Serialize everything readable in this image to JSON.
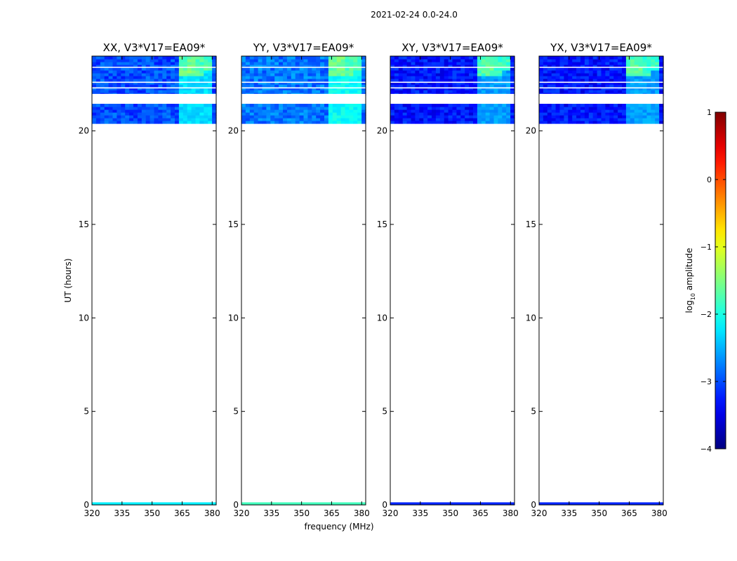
{
  "figure_title": "2021-02-24 0.0-24.0",
  "chart_data": {
    "type": "heatmap",
    "title": "2021-02-24 0.0-24.0",
    "xlabel": "frequency (MHz)",
    "ylabel": "UT (hours)",
    "xlim": [
      320,
      382
    ],
    "ylim": [
      0,
      24
    ],
    "xticks": [
      320,
      335,
      350,
      365,
      380
    ],
    "yticks": [
      0,
      5,
      10,
      15,
      20
    ],
    "colorbar": {
      "label_main": "log",
      "label_sub": "10",
      "label_tail": " amplitude",
      "range": [
        -4,
        1
      ],
      "ticks": [
        -4,
        -3,
        -2,
        -1,
        0,
        1
      ],
      "colormap": "jet"
    },
    "panels": [
      {
        "title": "XX, V3*V17=EA09*",
        "base_level": -3.0,
        "flag_rows_hours": [
          23.4,
          22.6,
          22.3,
          21.95,
          21.75
        ],
        "blank_band_hours": [
          21.45,
          21.95
        ],
        "rfi_strength": 1.0,
        "bottom_level": -2.2
      },
      {
        "title": "YY, V3*V17=EA09*",
        "base_level": -2.8,
        "flag_rows_hours": [
          23.4,
          22.6,
          22.3,
          21.95,
          21.75
        ],
        "blank_band_hours": [
          21.45,
          21.95
        ],
        "rfi_strength": 1.0,
        "bottom_level": -1.8
      },
      {
        "title": "XY, V3*V17=EA09*",
        "base_level": -3.3,
        "flag_rows_hours": [
          23.4,
          22.6,
          22.3,
          21.95,
          21.75
        ],
        "blank_band_hours": [
          21.45,
          21.95
        ],
        "rfi_strength": 0.9,
        "bottom_level": -3.2
      },
      {
        "title": "YX, V3*V17=EA09*",
        "base_level": -3.3,
        "flag_rows_hours": [
          23.4,
          22.6,
          22.3,
          21.95,
          21.75
        ],
        "blank_band_hours": [
          21.45,
          21.95
        ],
        "rfi_strength": 0.9,
        "bottom_level": -3.2
      }
    ],
    "data_time_range_hours": [
      20.4,
      24.0
    ],
    "bottom_strip_hours": [
      0.0,
      0.1
    ],
    "rfi_features": [
      {
        "f_start": 363.5,
        "f_end": 367.0,
        "level": -1.6,
        "t_min": 23.0
      },
      {
        "f_start": 367.5,
        "f_end": 371.5,
        "level": -1.5,
        "t_min": 23.0
      },
      {
        "f_start": 372.0,
        "f_end": 376.0,
        "level": -1.7,
        "t_min": 23.0
      },
      {
        "f_start": 376.5,
        "f_end": 380.5,
        "level": -1.7,
        "t_min": 23.3
      }
    ]
  }
}
